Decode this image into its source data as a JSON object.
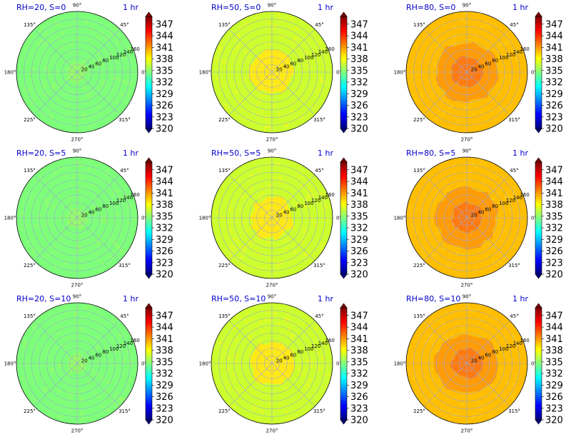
{
  "chart_data": [
    {
      "type": "heatmap",
      "title": "RH=20, S=0",
      "subtitle": "1 hr",
      "level": "low"
    },
    {
      "type": "heatmap",
      "title": "RH=50, S=0",
      "subtitle": "1 hr",
      "level": "mid"
    },
    {
      "type": "heatmap",
      "title": "RH=80, S=0",
      "subtitle": "1 hr",
      "level": "high"
    },
    {
      "type": "heatmap",
      "title": "RH=20, S=5",
      "subtitle": "1 hr",
      "level": "low"
    },
    {
      "type": "heatmap",
      "title": "RH=50, S=5",
      "subtitle": "1 hr",
      "level": "mid"
    },
    {
      "type": "heatmap",
      "title": "RH=80, S=5",
      "subtitle": "1 hr",
      "level": "high"
    },
    {
      "type": "heatmap",
      "title": "RH=20, S=10",
      "subtitle": "1 hr",
      "level": "low"
    },
    {
      "type": "heatmap",
      "title": "RH=50, S=10",
      "subtitle": "1 hr",
      "level": "mid"
    },
    {
      "type": "heatmap",
      "title": "RH=80, S=10",
      "subtitle": "1 hr",
      "level": "high"
    }
  ],
  "shared": {
    "angle_labels": [
      "90°",
      "45°",
      "0°",
      "315°",
      "270°",
      "225°",
      "180°",
      "135°"
    ],
    "angle_values": [
      90,
      45,
      0,
      315,
      270,
      225,
      180,
      135
    ],
    "radial_ticks": [
      20,
      40,
      60,
      80,
      100,
      120,
      140,
      160
    ],
    "radial_labels": [
      "20",
      "40",
      "60",
      "80",
      "100",
      "120",
      "140",
      "160"
    ],
    "colorbar_ticks": [
      320,
      323,
      326,
      329,
      332,
      335,
      338,
      341,
      344,
      347
    ],
    "colorbar_labels": [
      "320",
      "323",
      "326",
      "329",
      "332",
      "335",
      "338",
      "341",
      "344",
      "347"
    ],
    "colorbar_range": [
      320,
      349
    ],
    "colormap": [
      "#00007f",
      "#0000ff",
      "#007fff",
      "#00ffff",
      "#7fff7f",
      "#ffff00",
      "#ff7f00",
      "#ff0000",
      "#7f0000"
    ],
    "fill_colors": {
      "low": {
        "outer": "#7dff7a",
        "inner": "#b0ff4a",
        "speck": "#9cff66"
      },
      "mid": {
        "outer": "#ccff2e",
        "inner": "#ffe818",
        "speck": "#f5f51f"
      },
      "high": {
        "outer": "#ffbe00",
        "inner": "#ff9c08",
        "core": "#ff7a10",
        "speck": "#ffcc10"
      }
    },
    "grid_color": "#9aa6d6"
  }
}
